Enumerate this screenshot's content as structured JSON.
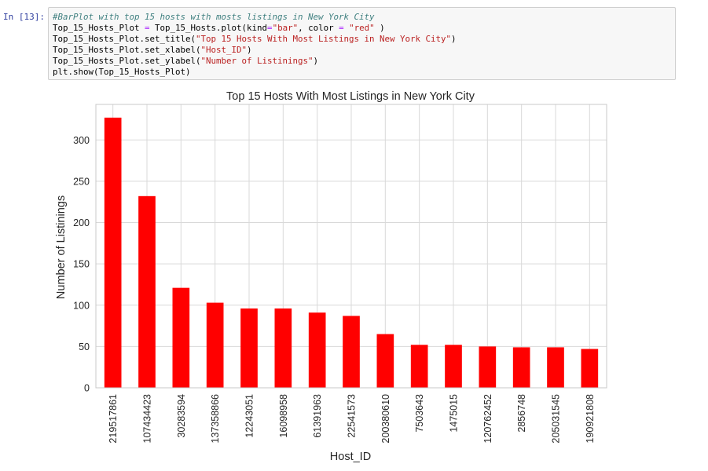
{
  "cell": {
    "prompt": "In [13]:",
    "code": {
      "line1": "#BarPlot with top 15 hosts with mosts listings in New York City",
      "line2_a": "Top_15_Hosts_Plot ",
      "line2_eq": "=",
      "line2_b": " Top_15_Hosts.plot(kind",
      "line2_eq2": "=",
      "line2_s1": "\"bar\"",
      "line2_c": ", color ",
      "line2_eq3": "=",
      "line2_d": " ",
      "line2_s2": "\"red\"",
      "line2_e": " )",
      "line3_a": "Top_15_Hosts_Plot.set_title(",
      "line3_s": "\"Top 15 Hosts With Most Listings in New York City\"",
      "line3_b": ")",
      "line4_a": "Top_15_Hosts_Plot.set_xlabel(",
      "line4_s": "\"Host_ID\"",
      "line4_b": ")",
      "line5_a": "Top_15_Hosts_Plot.set_ylabel(",
      "line5_s": "\"Number of Listinings\"",
      "line5_b": ")",
      "line6": "plt.show(Top_15_Hosts_Plot)"
    }
  },
  "colors": {
    "bar": "#ff0000",
    "grid": "#d9d9d9",
    "frame": "#c8c8c8"
  },
  "chart_data": {
    "type": "bar",
    "title": "Top 15 Hosts With Most Listings in New York City",
    "xlabel": "Host_ID",
    "ylabel": "Number of Listinings",
    "categories": [
      "219517861",
      "107434423",
      "30283594",
      "137358866",
      "12243051",
      "16098958",
      "61391963",
      "22541573",
      "200380610",
      "7503643",
      "1475015",
      "120762452",
      "2856748",
      "205031545",
      "190921808"
    ],
    "values": [
      327,
      232,
      121,
      103,
      96,
      96,
      91,
      87,
      65,
      52,
      52,
      50,
      49,
      49,
      47
    ],
    "yticks": [
      0,
      50,
      100,
      150,
      200,
      250,
      300
    ],
    "ylim": [
      0,
      343
    ],
    "grid": true
  }
}
